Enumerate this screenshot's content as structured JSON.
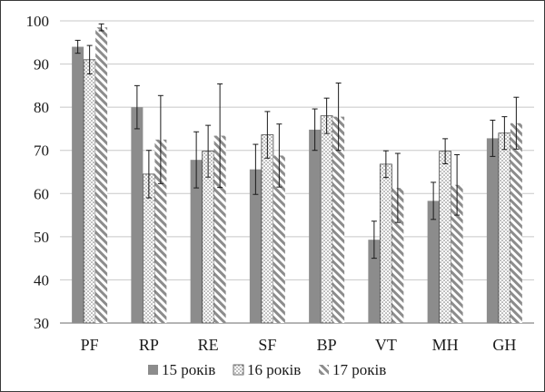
{
  "chart_data": {
    "type": "bar",
    "title": "",
    "xlabel": "",
    "ylabel": "",
    "ylim": [
      30,
      100
    ],
    "yticks": [
      30,
      40,
      50,
      60,
      70,
      80,
      90,
      100
    ],
    "grid": "horizontal",
    "legend_position": "bottom",
    "categories": [
      "PF",
      "RP",
      "RE",
      "SF",
      "BP",
      "VT",
      "MH",
      "GH"
    ],
    "series": [
      {
        "name": "15 років",
        "pattern": "solid",
        "color": "#8c8c8c",
        "values": [
          94,
          80,
          67.8,
          65.6,
          74.8,
          49.3,
          58.3,
          72.8
        ],
        "error": [
          1.5,
          5,
          6.5,
          5.8,
          4.8,
          4.3,
          4.3,
          4.2
        ]
      },
      {
        "name": "16 років",
        "pattern": "dots",
        "color": "#ffffff",
        "values": [
          91,
          64.5,
          69.8,
          73.6,
          78,
          66.8,
          69.8,
          74
        ],
        "error": [
          3.3,
          5.5,
          6,
          5.4,
          4.1,
          3.1,
          2.9,
          3.8
        ]
      },
      {
        "name": "17 років",
        "pattern": "diagonal",
        "color": "#8c8c8c",
        "values": [
          98.5,
          72.5,
          73.4,
          68.8,
          77.8,
          61.3,
          62,
          76.3
        ],
        "error": [
          0.8,
          10.2,
          12,
          7.3,
          7.8,
          8,
          7,
          6
        ]
      }
    ]
  }
}
